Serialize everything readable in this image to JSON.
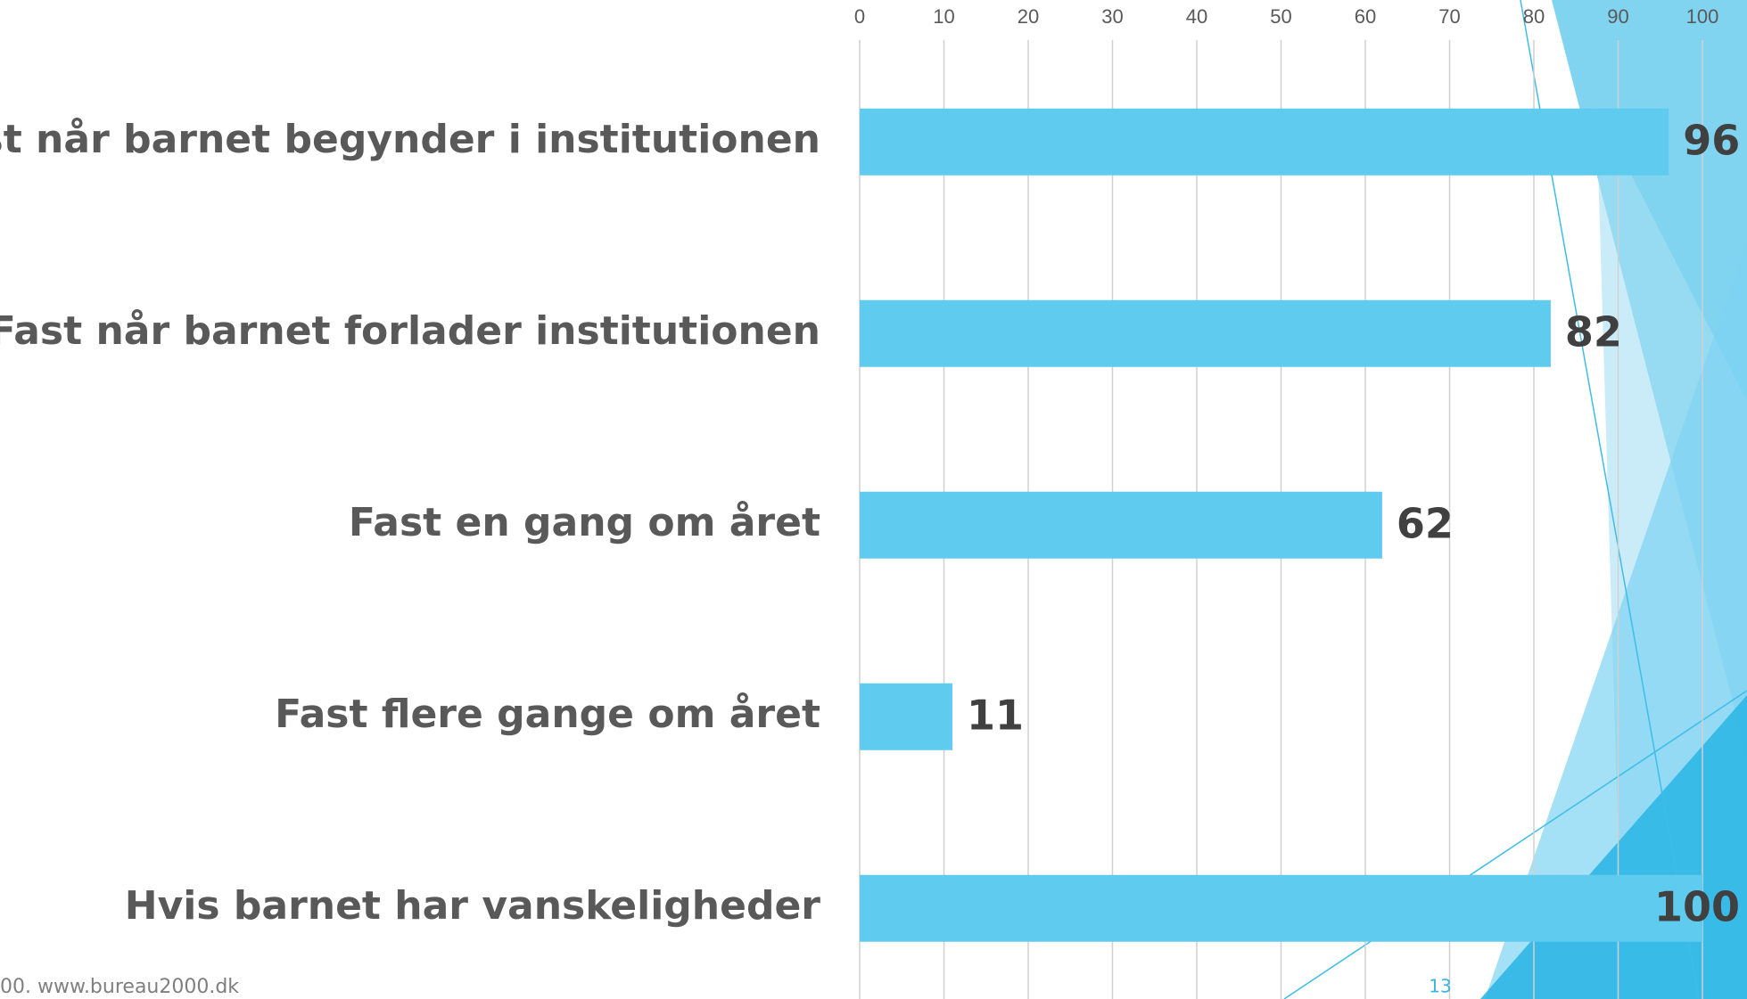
{
  "chart_data": {
    "type": "bar",
    "orientation": "horizontal",
    "categories": [
      "Fast når barnet begynder i institutionen",
      "Fast når barnet forlader institutionen",
      "Fast en gang om året",
      "Fast flere gange om året",
      "Hvis barnet har vanskeligheder"
    ],
    "values": [
      96,
      82,
      62,
      11,
      100
    ],
    "color": "#5ecbef",
    "xlim": [
      0,
      100
    ],
    "xticks": [
      0,
      10,
      20,
      30,
      40,
      50,
      60,
      70,
      80,
      90,
      100
    ],
    "grid": true
  },
  "footer": "00. www.bureau2000.dk",
  "page_number": "13"
}
